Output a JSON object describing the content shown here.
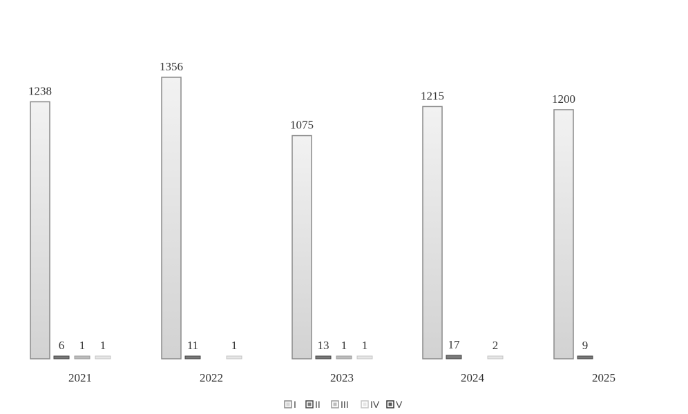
{
  "chart_data": {
    "type": "bar",
    "categories": [
      "2021",
      "2022",
      "2023",
      "2024",
      "2025"
    ],
    "series": [
      {
        "name": "I",
        "values": [
          1238,
          1356,
          1075,
          1215,
          1200
        ],
        "color": "#d6d6d6",
        "stroke": "#8a8a8a"
      },
      {
        "name": "II",
        "values": [
          6,
          11,
          13,
          17,
          9
        ],
        "color": "#7a7a7a",
        "stroke": "#444444"
      },
      {
        "name": "III",
        "values": [
          1,
          null,
          1,
          null,
          null
        ],
        "color": "#bdbdbd",
        "stroke": "#9a9a9a"
      },
      {
        "name": "IV",
        "values": [
          1,
          1,
          1,
          2,
          null
        ],
        "color": "#e6e6e6",
        "stroke": "#c4c4c4"
      },
      {
        "name": "V",
        "values": [
          null,
          null,
          null,
          null,
          null
        ],
        "color": "#5a5a5a",
        "stroke": "#333333"
      }
    ],
    "title": "",
    "xlabel": "",
    "ylabel": "",
    "ylim": [
      0,
      1356
    ],
    "grid": false,
    "legend": "bottom-center"
  }
}
